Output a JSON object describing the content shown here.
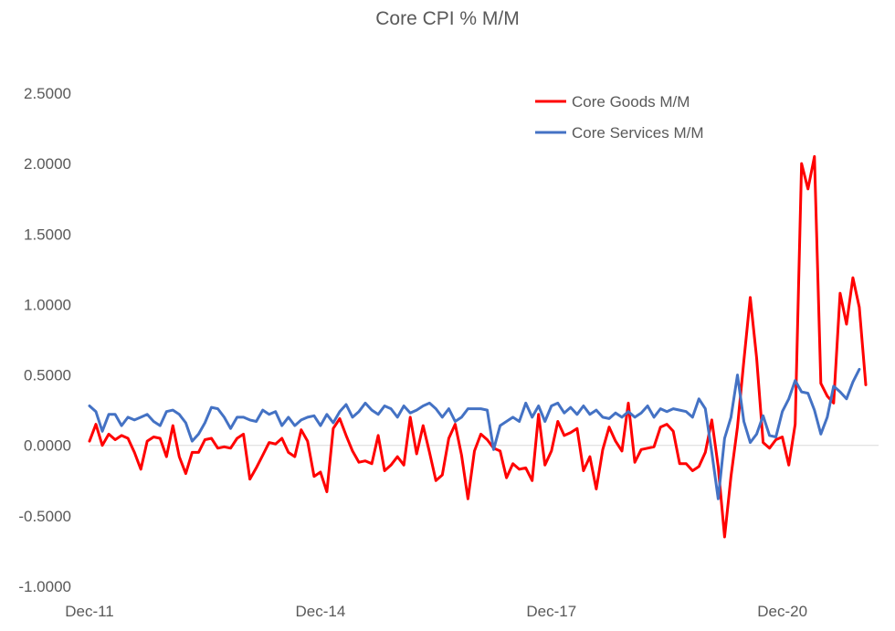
{
  "chart_data": {
    "type": "line",
    "title": "Core CPI  % M/M",
    "xlabel": "",
    "ylabel": "",
    "ylim": [
      -1.0,
      2.5
    ],
    "yticks": [
      2.5,
      2.0,
      1.5,
      1.0,
      0.5,
      0.0,
      -0.5,
      -1.0
    ],
    "ytick_labels": [
      "2.5000",
      "2.0000",
      "1.5000",
      "1.0000",
      "0.5000",
      "0.0000",
      "-0.5000",
      "-1.0000"
    ],
    "xlim": [
      0,
      123
    ],
    "xticks": [
      0,
      36,
      72,
      108
    ],
    "xtick_labels": [
      "Dec-11",
      "Dec-14",
      "Dec-17",
      "Dec-20"
    ],
    "legend_position": "top-right",
    "grid": false,
    "series": [
      {
        "name": "Core Goods M/M",
        "color": "#ff0000",
        "values": [
          0.03,
          0.15,
          0.0,
          0.08,
          0.04,
          0.07,
          0.05,
          -0.05,
          -0.17,
          0.03,
          0.06,
          0.05,
          -0.08,
          0.14,
          -0.08,
          -0.2,
          -0.05,
          -0.05,
          0.04,
          0.05,
          -0.02,
          -0.01,
          -0.02,
          0.05,
          0.08,
          -0.24,
          -0.16,
          -0.07,
          0.02,
          0.01,
          0.05,
          -0.05,
          -0.08,
          0.11,
          0.03,
          -0.22,
          -0.19,
          -0.33,
          0.12,
          0.19,
          0.07,
          -0.04,
          -0.12,
          -0.11,
          -0.13,
          0.07,
          -0.18,
          -0.14,
          -0.08,
          -0.14,
          0.2,
          -0.06,
          0.14,
          -0.05,
          -0.25,
          -0.21,
          0.05,
          0.15,
          -0.07,
          -0.38,
          -0.04,
          0.08,
          0.04,
          -0.02,
          -0.04,
          -0.23,
          -0.13,
          -0.17,
          -0.16,
          -0.25,
          0.22,
          -0.14,
          -0.04,
          0.17,
          0.07,
          0.09,
          0.12,
          -0.18,
          -0.08,
          -0.31,
          -0.03,
          0.13,
          0.03,
          -0.04,
          0.3,
          -0.12,
          -0.03,
          -0.02,
          -0.01,
          0.13,
          0.15,
          0.1,
          -0.13,
          -0.13,
          -0.18,
          -0.15,
          -0.05,
          0.18,
          -0.15,
          -0.65,
          -0.22,
          0.13,
          0.6,
          1.05,
          0.62,
          0.02,
          -0.02,
          0.04,
          0.06,
          -0.14,
          0.15,
          2.0,
          1.82,
          2.05,
          0.44,
          0.35,
          0.3,
          1.08,
          0.86,
          1.19,
          0.98,
          0.43
        ]
      },
      {
        "name": "Core Services M/M",
        "color": "#4472c4",
        "values": [
          0.28,
          0.24,
          0.1,
          0.22,
          0.22,
          0.14,
          0.2,
          0.18,
          0.2,
          0.22,
          0.17,
          0.14,
          0.24,
          0.25,
          0.22,
          0.16,
          0.03,
          0.08,
          0.16,
          0.27,
          0.26,
          0.2,
          0.12,
          0.2,
          0.2,
          0.18,
          0.17,
          0.25,
          0.22,
          0.24,
          0.14,
          0.2,
          0.14,
          0.18,
          0.2,
          0.21,
          0.14,
          0.22,
          0.16,
          0.24,
          0.29,
          0.2,
          0.24,
          0.3,
          0.25,
          0.22,
          0.28,
          0.26,
          0.2,
          0.28,
          0.23,
          0.25,
          0.28,
          0.3,
          0.26,
          0.2,
          0.26,
          0.17,
          0.2,
          0.26,
          0.26,
          0.26,
          0.25,
          -0.03,
          0.14,
          0.17,
          0.2,
          0.17,
          0.3,
          0.2,
          0.28,
          0.17,
          0.28,
          0.3,
          0.23,
          0.27,
          0.22,
          0.28,
          0.22,
          0.25,
          0.2,
          0.19,
          0.23,
          0.2,
          0.24,
          0.2,
          0.23,
          0.28,
          0.2,
          0.26,
          0.24,
          0.26,
          0.25,
          0.24,
          0.2,
          0.33,
          0.26,
          -0.05,
          -0.38,
          0.05,
          0.2,
          0.5,
          0.17,
          0.02,
          0.08,
          0.21,
          0.07,
          0.06,
          0.24,
          0.33,
          0.46,
          0.38,
          0.37,
          0.25,
          0.08,
          0.2,
          0.42,
          0.38,
          0.33,
          0.45,
          0.54
        ]
      }
    ]
  }
}
